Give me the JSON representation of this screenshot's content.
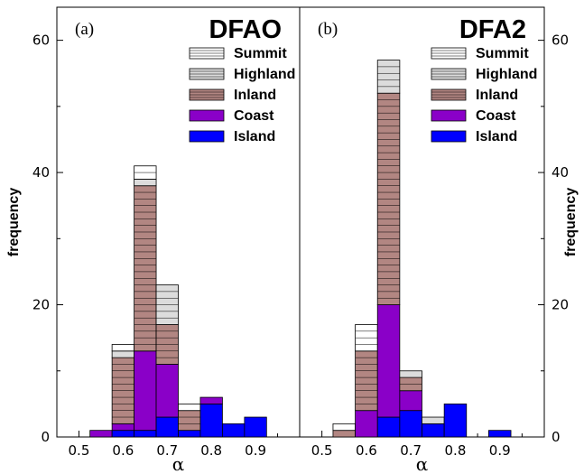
{
  "chart_data": [
    {
      "type": "bar",
      "stacked": true,
      "panel_label": "(a)",
      "title": "DFAO",
      "xlabel": "α",
      "ylabel": "frequency",
      "xlim": [
        0.45,
        1.0
      ],
      "ylim": [
        0,
        65
      ],
      "xticks": [
        "0.5",
        "0.6",
        "0.7",
        "0.8",
        "0.9"
      ],
      "yticks": [
        "0",
        "20",
        "40",
        "60"
      ],
      "bin_centers": [
        0.55,
        0.6,
        0.65,
        0.7,
        0.75,
        0.8,
        0.85,
        0.9
      ],
      "series": [
        {
          "name": "Island",
          "color": "#0000ff",
          "values": [
            0,
            1,
            1,
            3,
            1,
            5,
            2,
            3
          ]
        },
        {
          "name": "Coast",
          "color": "#8a00c8",
          "values": [
            1,
            1,
            12,
            8,
            0,
            1,
            0,
            0
          ]
        },
        {
          "name": "Inland",
          "color": "#b28682",
          "values": [
            0,
            10,
            25,
            6,
            3,
            0,
            0,
            0
          ]
        },
        {
          "name": "Highland",
          "color": "#dcdcdc",
          "values": [
            0,
            1,
            1,
            6,
            0,
            0,
            0,
            0
          ]
        },
        {
          "name": "Summit",
          "color": "#ffffff",
          "values": [
            0,
            1,
            2,
            0,
            1,
            0,
            0,
            0
          ]
        }
      ],
      "legend": "top-right"
    },
    {
      "type": "bar",
      "stacked": true,
      "panel_label": "(b)",
      "title": "DFA2",
      "xlabel": "α",
      "ylabel": "frequency",
      "xlim": [
        0.45,
        1.0
      ],
      "ylim": [
        0,
        65
      ],
      "xticks": [
        "0.5",
        "0.6",
        "0.7",
        "0.8",
        "0.9"
      ],
      "yticks": [
        "0",
        "20",
        "40",
        "60"
      ],
      "bin_centers": [
        0.55,
        0.6,
        0.65,
        0.7,
        0.75,
        0.8,
        0.85,
        0.9
      ],
      "series": [
        {
          "name": "Island",
          "color": "#0000ff",
          "values": [
            0,
            0,
            3,
            4,
            2,
            5,
            0,
            1
          ]
        },
        {
          "name": "Coast",
          "color": "#8a00c8",
          "values": [
            0,
            4,
            17,
            3,
            0,
            0,
            0,
            0
          ]
        },
        {
          "name": "Inland",
          "color": "#b28682",
          "values": [
            1,
            9,
            32,
            2,
            0,
            0,
            0,
            0
          ]
        },
        {
          "name": "Highland",
          "color": "#dcdcdc",
          "values": [
            0,
            0,
            5,
            1,
            1,
            0,
            0,
            0
          ]
        },
        {
          "name": "Summit",
          "color": "#ffffff",
          "values": [
            1,
            4,
            0,
            0,
            0,
            0,
            0,
            0
          ]
        }
      ],
      "legend": "top-right"
    }
  ]
}
